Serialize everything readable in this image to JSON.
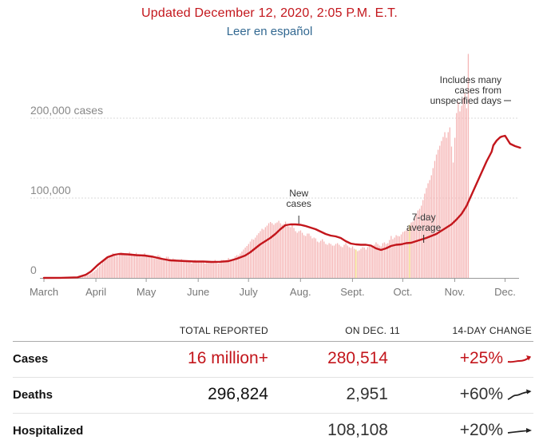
{
  "header": {
    "updated": "Updated December 12, 2020, 2:05 P.M. E.T.",
    "spanish_link": "Leer en español"
  },
  "colors": {
    "accent_red": "#c3161c",
    "bar_pink": "#f5b5b5",
    "bar_yellow": "#f1d679",
    "link_blue": "#326891"
  },
  "chart_data": {
    "type": "bar",
    "title": "",
    "y_tick_labels": [
      "200,000 cases",
      "100,000",
      "0"
    ],
    "y_ticks": [
      200000,
      100000,
      0
    ],
    "ylim": [
      0,
      245000
    ],
    "x_tick_labels": [
      "March",
      "April",
      "May",
      "June",
      "July",
      "Aug.",
      "Sept.",
      "Oct.",
      "Nov.",
      "Dec."
    ],
    "x_tick_days": [
      0,
      31,
      61,
      92,
      122,
      153,
      184,
      214,
      245,
      275
    ],
    "period": "2020-03-01 to 2020-12-11",
    "grid": true,
    "series": [
      {
        "name": "New cases",
        "kind": "daily bars",
        "values": [
          3,
          4,
          6,
          8,
          11,
          14,
          18,
          23,
          30,
          38,
          45,
          55,
          70,
          90,
          120,
          160,
          220,
          300,
          400,
          520,
          700,
          950,
          1300,
          1700,
          2200,
          2800,
          3500,
          4400,
          5500,
          6800,
          8300,
          10000,
          12000,
          14500,
          17000,
          19500,
          21500,
          23000,
          24500,
          26500,
          29000,
          31000,
          30000,
          28000,
          27500,
          29000,
          32000,
          31500,
          30000,
          28500,
          30000,
          32500,
          30500,
          28500,
          29500,
          31500,
          29000,
          27500,
          26500,
          29500,
          31000,
          28500,
          26500,
          27500,
          28000,
          26500,
          24500,
          25500,
          28500,
          27500,
          25500,
          23500,
          24500,
          26500,
          26500,
          24000,
          22500,
          24500,
          23500,
          21500,
          20500,
          22500,
          23500,
          21500,
          20000,
          21500,
          21500,
          19500,
          18000,
          20500,
          22500,
          20500,
          19500,
          19500,
          21500,
          19500,
          18000,
          19500,
          20500,
          19500,
          19000,
          20500,
          22500,
          19500,
          18000,
          20500,
          22500,
          22500,
          20500,
          22500,
          25000,
          23000,
          22000,
          24000,
          27000,
          28500,
          28000,
          30500,
          33000,
          35500,
          38000,
          40000,
          42500,
          45500,
          48500,
          48000,
          50500,
          53500,
          56000,
          58500,
          61500,
          60500,
          63500,
          65500,
          68500,
          70000,
          68500,
          66500,
          68500,
          69500,
          71500,
          68500,
          66500,
          67500,
          70500,
          67500,
          64500,
          63500,
          66500,
          62500,
          58500,
          56500,
          58500,
          59500,
          56500,
          53500,
          52500,
          55500,
          55500,
          52500,
          49500,
          50500,
          49500,
          45500,
          44500,
          46500,
          48500,
          45500,
          42500,
          41500,
          43500,
          42500,
          40500,
          40500,
          42500,
          43500,
          41500,
          39500,
          38500,
          41500,
          43500,
          40500,
          38500,
          37500,
          39500,
          36500,
          35500,
          33500,
          34500,
          36500,
          38500,
          38000,
          35500,
          38500,
          41500,
          41500,
          39500,
          41500,
          44500,
          42500,
          40500,
          39500,
          43500,
          44500,
          42500,
          43500,
          47500,
          52500,
          48500,
          50500,
          53500,
          52500,
          52000,
          54500,
          57500,
          58500,
          59500,
          62500,
          66500,
          69500,
          70500,
          74500,
          80500,
          84500,
          86500,
          90500,
          97500,
          105500,
          112500,
          118500,
          122500,
          128500,
          137500,
          146500,
          154500,
          160500,
          165500,
          171500,
          176500,
          182500,
          175500,
          182500,
          188500,
          164500,
          144500,
          175500,
          206500,
          220500,
          208500,
          215500,
          225500,
          231500,
          212500,
          280514
        ],
        "highlight_days": [
          186,
          218,
          254,
          267,
          274
        ]
      },
      {
        "name": "7-day average",
        "kind": "line",
        "x": [
          0,
          10,
          20,
          25,
          28,
          30,
          32,
          35,
          38,
          42,
          45,
          50,
          55,
          60,
          65,
          70,
          75,
          80,
          85,
          90,
          95,
          100,
          105,
          110,
          115,
          120,
          123,
          126,
          129,
          132,
          135,
          138,
          141,
          144,
          147,
          150,
          153,
          156,
          159,
          162,
          165,
          168,
          171,
          174,
          177,
          180,
          183,
          186,
          189,
          192,
          195,
          198,
          201,
          204,
          207,
          210,
          213,
          216,
          219,
          222,
          225,
          228,
          231,
          234,
          237,
          240,
          243,
          246,
          249,
          252,
          255,
          258,
          261,
          264,
          267,
          268,
          270,
          272,
          273,
          275,
          278,
          281,
          284
        ],
        "y": [
          3,
          60,
          700,
          4000,
          8000,
          12000,
          16000,
          21000,
          26000,
          29000,
          30000,
          29500,
          28500,
          28000,
          26500,
          24000,
          22000,
          21500,
          21000,
          20500,
          20500,
          20000,
          20200,
          21000,
          24000,
          28000,
          32000,
          37000,
          42000,
          46000,
          50000,
          55000,
          61000,
          66000,
          67000,
          67000,
          66500,
          65000,
          63000,
          61000,
          58000,
          55000,
          53000,
          52000,
          50000,
          46000,
          43000,
          42000,
          41500,
          41500,
          40500,
          37000,
          35000,
          37000,
          40000,
          41500,
          42000,
          43500,
          44000,
          46000,
          48000,
          50000,
          52500,
          55000,
          59000,
          63000,
          67000,
          73000,
          80000,
          90000,
          104000,
          118000,
          132000,
          146000,
          158000,
          166000,
          172000,
          176000,
          177000,
          178000,
          168000,
          165000,
          163000
        ]
      }
    ],
    "annotations": [
      {
        "text": [
          "New",
          "cases"
        ],
        "day": 152,
        "value": 71000
      },
      {
        "text": [
          "7-day",
          "average"
        ],
        "day": 226,
        "value": 53000
      },
      {
        "text": [
          "Includes many",
          "cases from",
          "unspecified days"
        ],
        "day": 285,
        "value": 243000
      }
    ]
  },
  "table": {
    "headers": {
      "total": "TOTAL REPORTED",
      "day": "ON DEC. 11",
      "change": "14-DAY CHANGE"
    },
    "rows": [
      {
        "label": "Cases",
        "total": "16 million+",
        "day": "280,514",
        "change": "+25%",
        "spark_color": "#c3161c"
      },
      {
        "label": "Deaths",
        "total": "296,824",
        "day": "2,951",
        "change": "+60%",
        "spark_color": "#222222"
      },
      {
        "label": "Hospitalized",
        "total": "",
        "day": "108,108",
        "change": "+20%",
        "spark_color": "#222222"
      }
    ]
  }
}
